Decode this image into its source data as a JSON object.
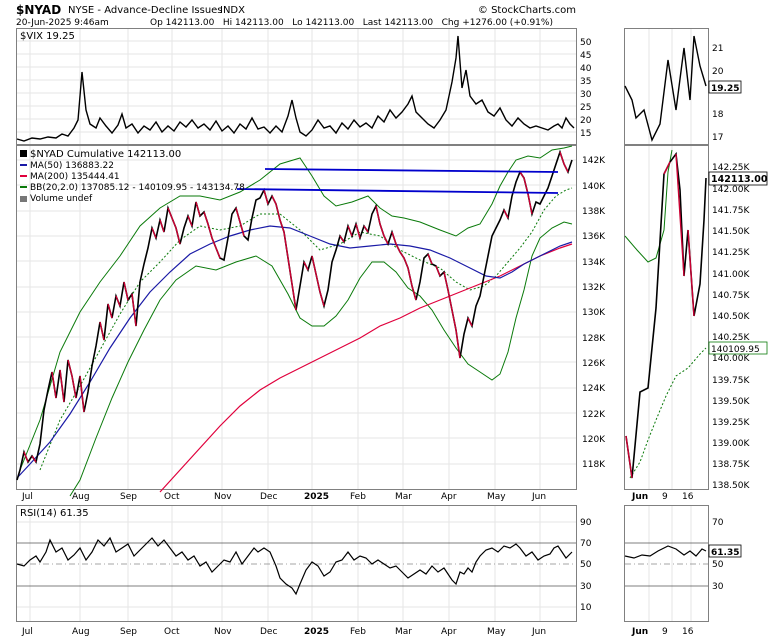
{
  "header": {
    "symbol": "$NYAD",
    "exchange_desc": "NYSE - Advance-Decline Issues",
    "index_tag": "INDX",
    "copyright": "© StockCharts.com",
    "datetime": "20-Jun-2025 9:46am",
    "ohlc": "Op 142113.00   Hi 142113.00   Lo 142113.00   Last 142113.00   Chg +1276.00 (+0.91%)"
  },
  "vix_panel": {
    "legend": "$VIX 19.25",
    "axis_ticks": [
      "50",
      "45",
      "40",
      "35",
      "30",
      "25",
      "20",
      "15"
    ],
    "zoom_ticks": [
      "21",
      "20",
      "18",
      "17"
    ],
    "last_label": "19.25"
  },
  "main_panel": {
    "legend": {
      "title": "$NYAD Cumulative 142113.00",
      "ma50": "MA(50) 136883.22",
      "ma200": "MA(200) 135444.41",
      "bb": "BB(20,2.0) 137085.12 - 140109.95 - 143134.78",
      "volume": "Volume undef"
    },
    "axis_ticks": [
      "142K",
      "140K",
      "138K",
      "136K",
      "134K",
      "132K",
      "130K",
      "128K",
      "126K",
      "124K",
      "122K",
      "120K",
      "118K"
    ],
    "zoom_ticks": [
      "142.25K",
      "142.00K",
      "141.75K",
      "141.50K",
      "141.25K",
      "141.00K",
      "140.75K",
      "140.50K",
      "140.25K",
      "140.00K",
      "139.75K",
      "139.50K",
      "139.25K",
      "139.00K",
      "138.75K",
      "138.50K"
    ],
    "last_label": "142113.00",
    "mid_label": "140109.95"
  },
  "rsi_panel": {
    "legend": "RSI(14) 61.35",
    "axis_ticks": [
      "90",
      "70",
      "50",
      "30",
      "10"
    ],
    "zoom_ticks": [
      "70",
      "50",
      "30"
    ],
    "last_label": "61.35"
  },
  "x_axis": {
    "months": [
      "Jul",
      "Aug",
      "Sep",
      "Oct",
      "Nov",
      "Dec",
      "2025",
      "Feb",
      "Mar",
      "Apr",
      "May",
      "Jun"
    ],
    "zoom_labels": [
      "Jun",
      "9",
      "16"
    ]
  },
  "colors": {
    "price": "#000000",
    "price_down": "#cc0033",
    "ma50": "#1a1aa6",
    "ma200": "#e0003c",
    "bb": "#0a7a0a",
    "trendline": "#0000cc",
    "grid": "#e6e6e6"
  },
  "chart_data": [
    {
      "type": "line",
      "name": "$VIX",
      "x": [
        "Jul",
        "Aug",
        "Sep",
        "Oct",
        "Nov",
        "Dec",
        "2025",
        "Feb",
        "Mar",
        "Apr",
        "May",
        "Jun"
      ],
      "values": [
        12.5,
        23,
        16,
        17,
        16,
        15,
        20,
        16,
        22,
        52,
        19,
        19.25
      ],
      "ylim": [
        12,
        52
      ]
    },
    {
      "type": "line",
      "name": "$NYAD Cumulative",
      "x": [
        "Jul",
        "Aug",
        "Sep",
        "Oct",
        "Nov",
        "Dec",
        "2025",
        "Feb",
        "Mar",
        "Apr",
        "May",
        "Jun"
      ],
      "values": [
        117000,
        127000,
        136000,
        138500,
        136000,
        139500,
        131000,
        137000,
        133000,
        127000,
        138000,
        142113
      ],
      "ylim": [
        116000,
        143000
      ],
      "overlays": [
        "MA(50) 136883.22",
        "MA(200) 135444.41",
        "BB(20,2.0) 137085.12 - 140109.95 - 143134.78"
      ]
    },
    {
      "type": "line",
      "name": "RSI(14)",
      "x": [
        "Jul",
        "Aug",
        "Sep",
        "Oct",
        "Nov",
        "Dec",
        "2025",
        "Feb",
        "Mar",
        "Apr",
        "May",
        "Jun"
      ],
      "values": [
        55,
        62,
        60,
        54,
        50,
        58,
        38,
        56,
        46,
        40,
        60,
        61.35
      ],
      "ylim": [
        0,
        100
      ]
    }
  ]
}
